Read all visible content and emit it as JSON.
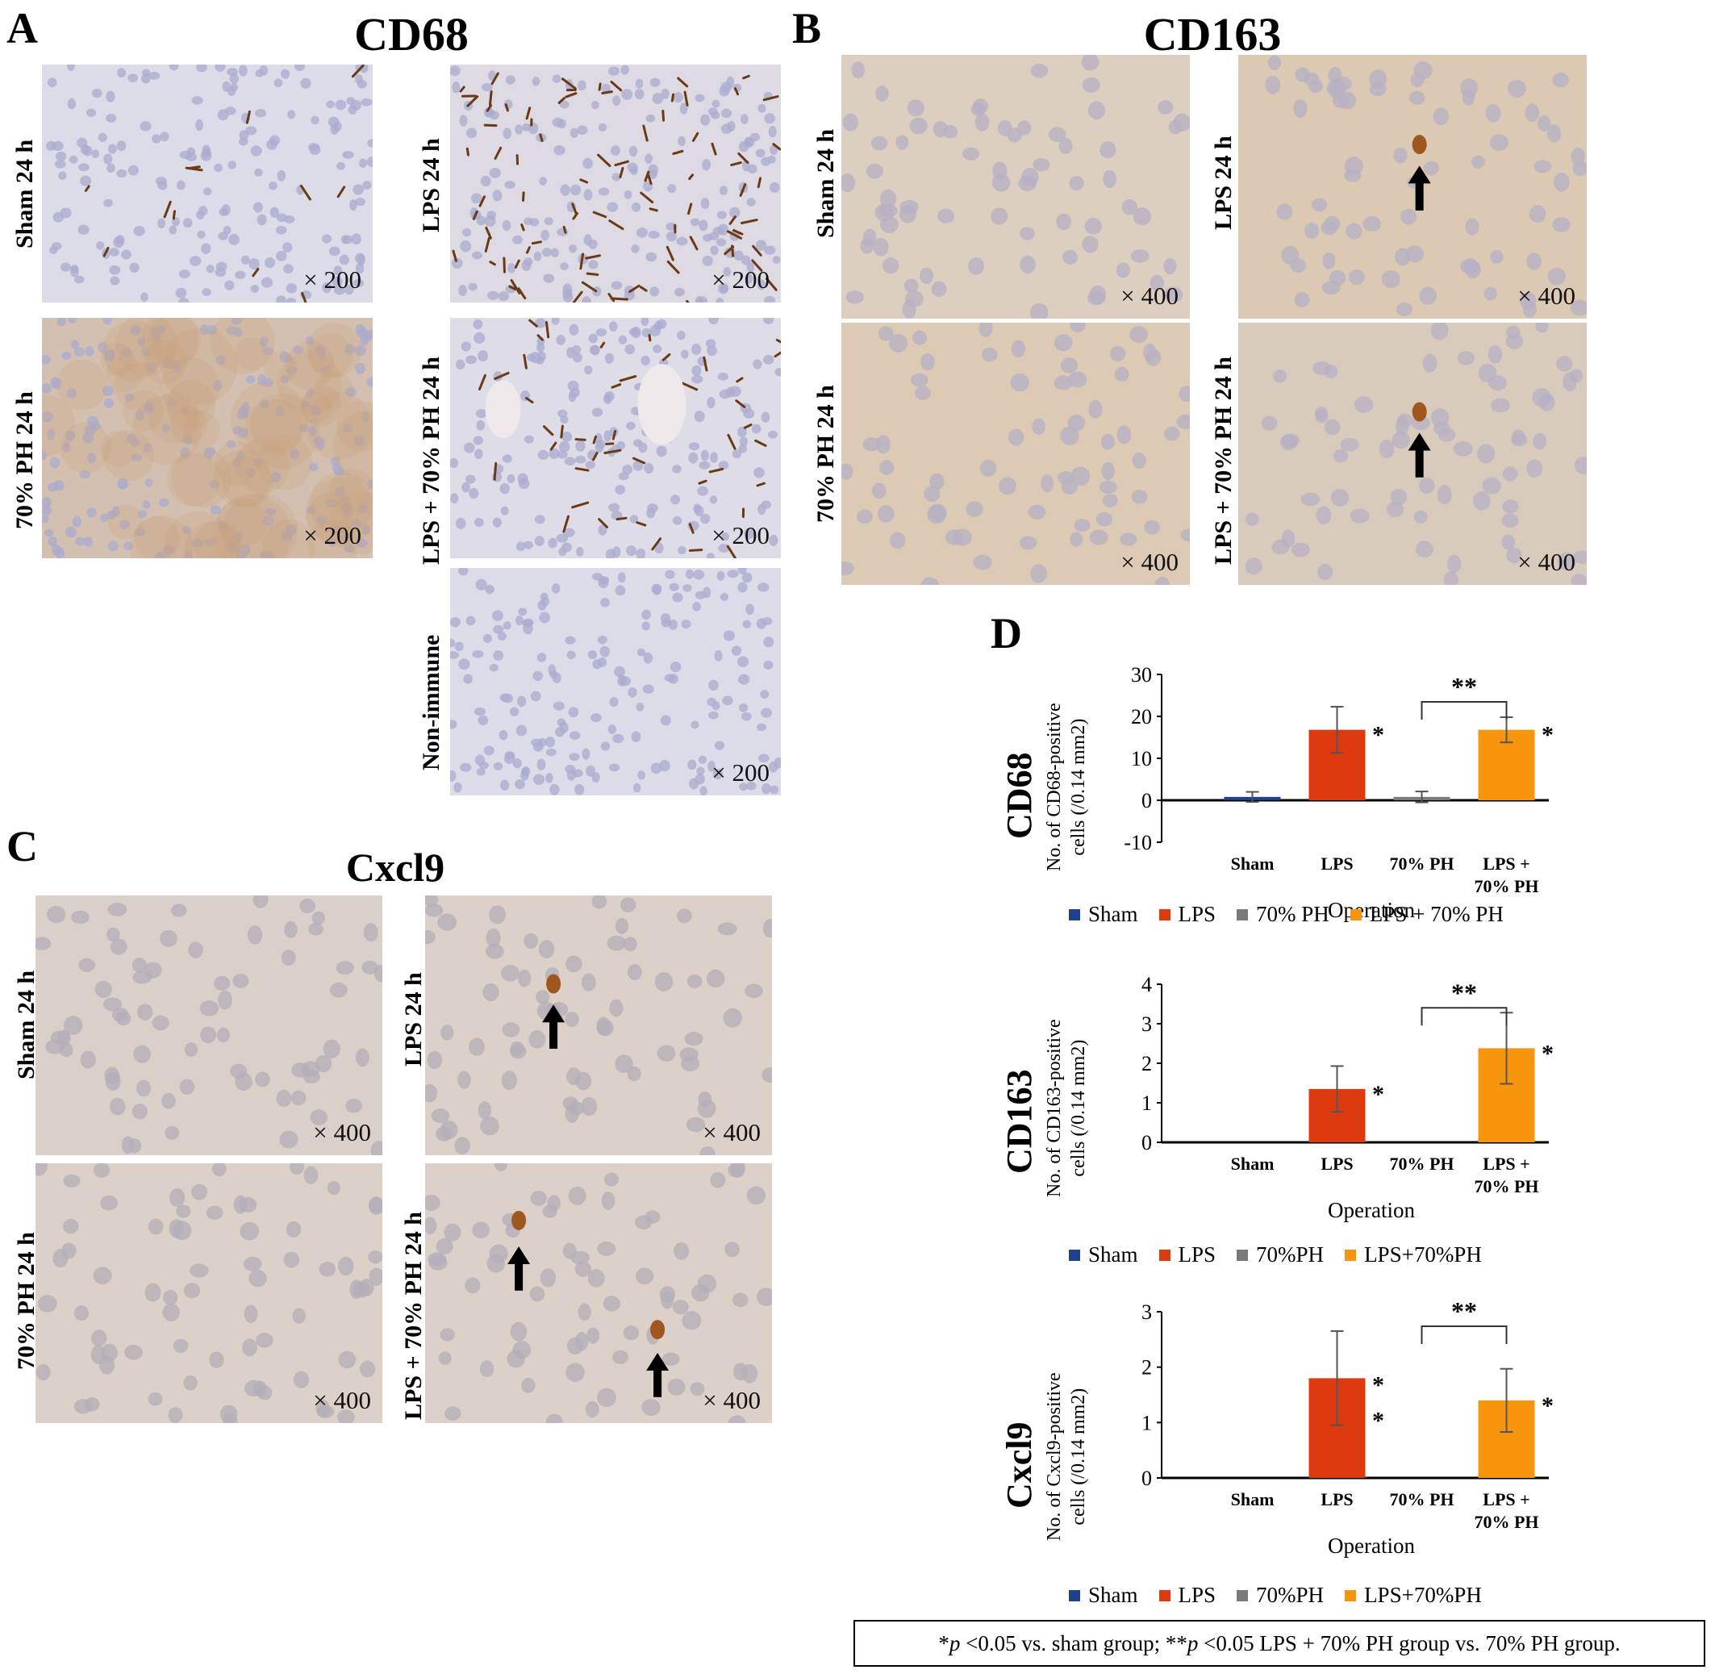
{
  "panels": {
    "A": {
      "letter": "A",
      "title": "CD68",
      "images": [
        {
          "label": "Sham 24 h",
          "mag": "× 200",
          "stain": "sparse-brown",
          "tint": "#dcdbe8"
        },
        {
          "label": "LPS 24 h",
          "mag": "× 200",
          "stain": "dense-brown",
          "tint": "#dddae3"
        },
        {
          "label": "70% PH 24 h",
          "mag": "× 200",
          "stain": "diffuse-brown",
          "tint": "#d4c0b0"
        },
        {
          "label": "LPS + 70% PH 24 h",
          "mag": "× 200",
          "stain": "medium-brown",
          "tint": "#dedce6"
        },
        {
          "label": "Non-immune",
          "mag": "× 200",
          "stain": "none",
          "tint": "#dcdce8"
        }
      ]
    },
    "B": {
      "letter": "B",
      "title": "CD163",
      "images": [
        {
          "label": "Sham 24 h",
          "mag": "× 400",
          "stain": "faint",
          "tint": "#dccfc0"
        },
        {
          "label": "LPS 24 h",
          "mag": "× 400",
          "stain": "single-arrow",
          "tint": "#dcc9b4"
        },
        {
          "label": "70% PH 24 h",
          "mag": "× 400",
          "stain": "faint",
          "tint": "#dccab5"
        },
        {
          "label": "LPS + 70% PH 24 h",
          "mag": "× 400",
          "stain": "single-arrow",
          "tint": "#d9cbbb"
        }
      ]
    },
    "C": {
      "letter": "C",
      "title": "Cxcl9",
      "images": [
        {
          "label": "Sham 24 h",
          "mag": "× 400",
          "stain": "faint",
          "tint": "#d9d1c9"
        },
        {
          "label": "LPS 24 h",
          "mag": "× 400",
          "stain": "single-arrow",
          "tint": "#dbd1c8"
        },
        {
          "label": "70% PH 24 h",
          "mag": "× 400",
          "stain": "faint",
          "tint": "#dbd1c8"
        },
        {
          "label": "LPS + 70% PH 24 h",
          "mag": "× 400",
          "stain": "double-arrow",
          "tint": "#dbd1c8"
        }
      ]
    },
    "D": {
      "letter": "D"
    }
  },
  "chart_data": [
    {
      "type": "bar",
      "row_label": "CD68",
      "ylabel_line1": "No. of CD68-positive",
      "ylabel_line2": "cells  (/0.14 mm2)",
      "xlabel": "Operation",
      "categories": [
        "Sham",
        "LPS",
        "70% PH",
        "LPS + 70% PH"
      ],
      "category_lines": [
        [
          "Sham"
        ],
        [
          "LPS"
        ],
        [
          "70% PH"
        ],
        [
          "LPS +",
          "70% PH"
        ]
      ],
      "values": [
        0.8,
        16.8,
        0.8,
        16.8
      ],
      "errors": [
        1.2,
        5.5,
        1.3,
        3.0
      ],
      "significance": [
        "",
        "*",
        "",
        "*"
      ],
      "bracket": {
        "from": 2,
        "to": 3,
        "label": "**"
      },
      "ylim": [
        -10,
        30
      ],
      "yticks": [
        -10,
        0,
        10,
        20,
        30
      ],
      "colors": [
        "#1f3f8f",
        "#dd3b0f",
        "#7a7a7a",
        "#f7950c"
      ],
      "legend": [
        "Sham",
        "LPS",
        "70% PH",
        "LPS + 70% PH"
      ]
    },
    {
      "type": "bar",
      "row_label": "CD163",
      "ylabel_line1": "No. of CD163-positive",
      "ylabel_line2": "cells  (/0.14 mm2)",
      "xlabel": "Operation",
      "categories": [
        "Sham",
        "LPS",
        "70% PH",
        "LPS + 70% PH"
      ],
      "category_lines": [
        [
          "Sham"
        ],
        [
          "LPS"
        ],
        [
          "70% PH"
        ],
        [
          "LPS +",
          "70% PH"
        ]
      ],
      "values": [
        0,
        1.35,
        0,
        2.38
      ],
      "errors": [
        0,
        0.58,
        0,
        0.9
      ],
      "significance": [
        "",
        "*",
        "",
        "*"
      ],
      "bracket": {
        "from": 2,
        "to": 3,
        "label": "**"
      },
      "ylim": [
        0,
        4
      ],
      "yticks": [
        0,
        1,
        2,
        3,
        4
      ],
      "colors": [
        "#1f3f8f",
        "#dd3b0f",
        "#7a7a7a",
        "#f7950c"
      ],
      "legend": [
        "Sham",
        "LPS",
        "70%PH",
        "LPS+70%PH"
      ]
    },
    {
      "type": "bar",
      "row_label": "Cxcl9",
      "ylabel_line1": "No. of Cxcl9-positive",
      "ylabel_line2": "cells  (/0.14 mm2)",
      "xlabel": "Operation",
      "categories": [
        "Sham",
        "LPS",
        "70% PH",
        "LPS + 70% PH"
      ],
      "category_lines": [
        [
          "Sham"
        ],
        [
          "LPS"
        ],
        [
          "70% PH"
        ],
        [
          "LPS +",
          "70% PH"
        ]
      ],
      "values": [
        0,
        1.8,
        0,
        1.4
      ],
      "errors": [
        0,
        0.85,
        0,
        0.57
      ],
      "significance": [
        "",
        "**",
        "",
        "*"
      ],
      "bracket": {
        "from": 2,
        "to": 3,
        "label": "**"
      },
      "ylim": [
        0,
        3
      ],
      "yticks": [
        0,
        1,
        2,
        3
      ],
      "colors": [
        "#1f3f8f",
        "#dd3b0f",
        "#7a7a7a",
        "#f7950c"
      ],
      "legend": [
        "Sham",
        "LPS",
        "70%PH",
        "LPS+70%PH"
      ]
    }
  ],
  "footnote": {
    "p1": "p",
    "t1": " <0.05 vs. sham group; **",
    "p2": "p",
    "t2": " <0.05 LPS + 70% PH group vs. 70% PH group.",
    "lead": "*"
  }
}
